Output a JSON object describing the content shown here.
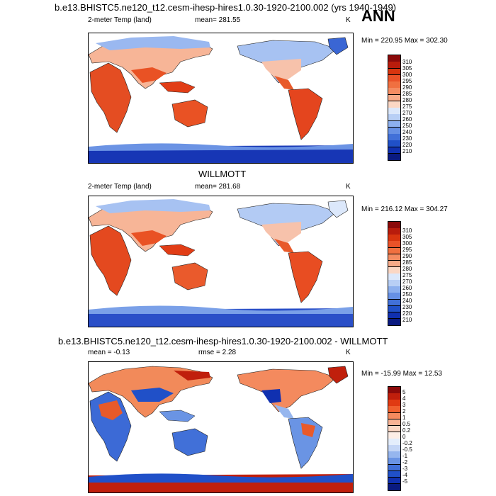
{
  "season": "ANN",
  "panels": [
    {
      "id": "model",
      "title": "b.e13.BHISTC5.ne120_t12.cesm-ihesp-hires1.0.30-1920-2100.002 (yrs 1940-1949)",
      "left_label": "2-meter Temp (land)",
      "center_label": "mean= 281.55",
      "unit": "K",
      "minmax": "Min = 220.95 Max = 302.30",
      "colorbar": {
        "labels": [
          "310",
          "305",
          "300",
          "295",
          "290",
          "285",
          "280",
          "275",
          "270",
          "260",
          "250",
          "240",
          "230",
          "220",
          "210"
        ],
        "colors": [
          "#8b0a0a",
          "#b81c0c",
          "#d8350f",
          "#ea5228",
          "#f07040",
          "#f48c62",
          "#f7aa88",
          "#fbd7c4",
          "#dce8fb",
          "#b8cff5",
          "#8db0ee",
          "#6690e4",
          "#4170d8",
          "#2050c8",
          "#1030b0",
          "#0a1a80"
        ]
      }
    },
    {
      "id": "obs",
      "title": "WILLMOTT",
      "left_label": "2-meter Temp (land)",
      "center_label": "mean= 281.68",
      "unit": "K",
      "minmax": "Min = 216.12 Max = 304.27",
      "colorbar": {
        "labels": [
          "310",
          "305",
          "300",
          "295",
          "290",
          "285",
          "280",
          "275",
          "270",
          "260",
          "250",
          "240",
          "230",
          "220",
          "210"
        ],
        "colors": [
          "#8b0a0a",
          "#b81c0c",
          "#d8350f",
          "#ea5228",
          "#f07040",
          "#f48c62",
          "#f7aa88",
          "#fbd7c4",
          "#dce8fb",
          "#b8cff5",
          "#8db0ee",
          "#6690e4",
          "#4170d8",
          "#2050c8",
          "#1030b0",
          "#0a1a80"
        ]
      }
    },
    {
      "id": "diff",
      "title": "b.e13.BHISTC5.ne120_t12.cesm-ihesp-hires1.0.30-1920-2100.002 - WILLMOTT",
      "left_label": "mean = -0.13",
      "center_label": "rmse = 2.28",
      "unit": "K",
      "minmax": "Min = -15.99 Max = 12.53",
      "colorbar": {
        "labels": [
          "5",
          "4",
          "3",
          "2",
          "1",
          "0.5",
          "0.2",
          "0",
          "-0.2",
          "-0.5",
          "-1",
          "-2",
          "-3",
          "-4",
          "-5"
        ],
        "colors": [
          "#8b0a0a",
          "#c01f0c",
          "#e03a12",
          "#f0602e",
          "#f48a5e",
          "#f8b395",
          "#fbd7c4",
          "#fdeee6",
          "#e4eefc",
          "#c4d6f6",
          "#96b6ee",
          "#6a94e4",
          "#4170d8",
          "#2050c8",
          "#1030b0",
          "#0a1a80"
        ]
      }
    }
  ]
}
